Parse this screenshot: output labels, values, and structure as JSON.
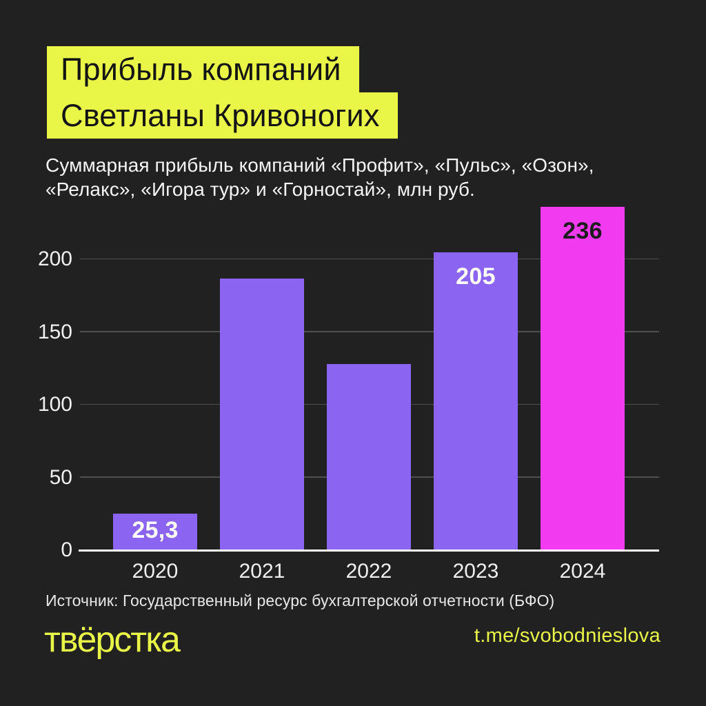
{
  "colors": {
    "background": "#212121",
    "accent_yellow": "#e9f547",
    "bar_purple": "#8b65f1",
    "bar_pink": "#f23bf0",
    "gridline": "#4f4f4f",
    "text_light": "#f2f2f2",
    "text_dark": "#141414"
  },
  "header": {
    "title_lines": [
      "Прибыль компаний",
      "Светланы Кривоногих"
    ],
    "subtitle_lines": [
      "Суммарная прибыль компаний «Профит», «Пульс», «Озон»,",
      "«Релакс», «Игора тур» и «Горностай», млн руб."
    ]
  },
  "chart_data": {
    "type": "bar",
    "title": "Прибыль компаний Светланы Кривоногих",
    "subtitle": "Суммарная прибыль компаний «Профит», «Пульс», «Озон», «Релакс», «Игора тур» и «Горностай», млн руб.",
    "unit": "млн руб.",
    "categories": [
      "2020",
      "2021",
      "2022",
      "2023",
      "2024"
    ],
    "values": [
      25.3,
      187,
      128,
      205,
      236
    ],
    "value_labels": [
      "25,3",
      "",
      "",
      "205",
      "236"
    ],
    "bar_colors": [
      "#8b65f1",
      "#8b65f1",
      "#8b65f1",
      "#8b65f1",
      "#f23bf0"
    ],
    "value_label_colors": [
      "#ffffff",
      "",
      "",
      "#ffffff",
      "#1c1c1c"
    ],
    "y_ticks": [
      0,
      50,
      100,
      150,
      200
    ],
    "ylim": [
      0,
      237
    ],
    "xlabel": "",
    "ylabel": "",
    "grid": "horizontal",
    "legend": false
  },
  "footer": {
    "source": "Источник: Государственный ресурс бухгалтерской отчетности (БФО)",
    "logo_text": "твёрстка",
    "telegram_handle": "t.me/svobodnieslova"
  }
}
